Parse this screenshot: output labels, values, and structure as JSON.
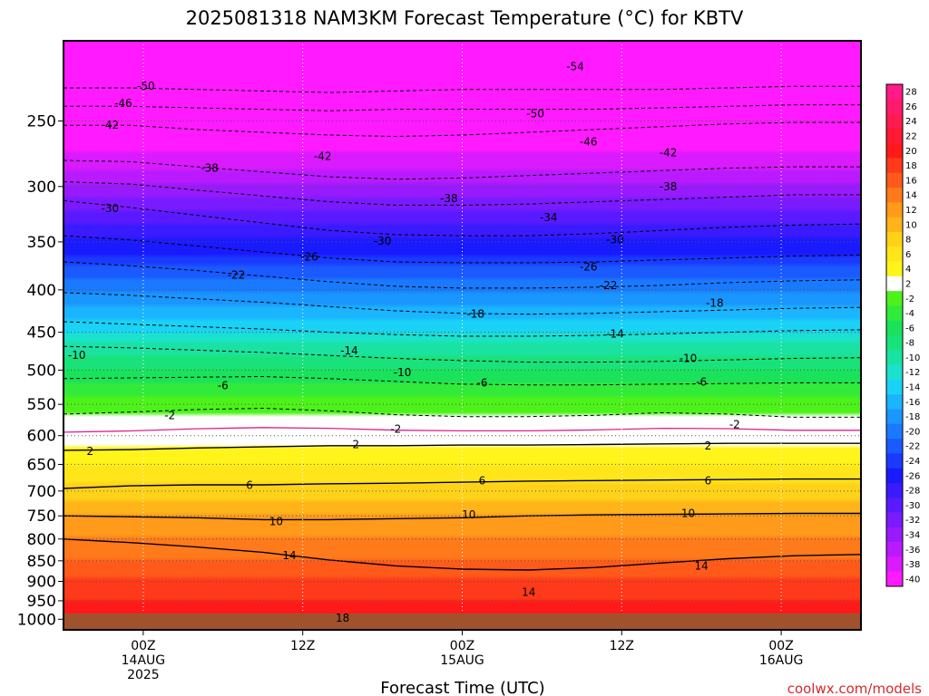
{
  "chart_data": {
    "type": "heatmap",
    "title": "2025081318 NAM3KM Forecast Temperature (°C) for KBTV",
    "xlabel": "Forecast Time (UTC)",
    "ylabel": "",
    "credit": "coolwx.com/models",
    "y_axis": {
      "scale": "log-pressure",
      "range": [
        1030,
        200
      ],
      "ticks": [
        250,
        300,
        350,
        400,
        450,
        500,
        550,
        600,
        650,
        700,
        750,
        800,
        850,
        900,
        950,
        1000
      ]
    },
    "x_axis": {
      "range_hours": [
        0,
        60
      ],
      "ticks": [
        {
          "hour": 6,
          "lines": [
            "00Z",
            "14AUG",
            "2025"
          ]
        },
        {
          "hour": 18,
          "lines": [
            "12Z"
          ]
        },
        {
          "hour": 30,
          "lines": [
            "00Z",
            "15AUG"
          ]
        },
        {
          "hour": 42,
          "lines": [
            "12Z"
          ]
        },
        {
          "hour": 54,
          "lines": [
            "00Z",
            "16AUG"
          ]
        }
      ]
    },
    "grid": true,
    "colorbar": {
      "position": "right",
      "labels": [
        "28",
        "26",
        "24",
        "22",
        "20",
        "18",
        "16",
        "14",
        "12",
        "10",
        "8",
        "6",
        "4",
        "2",
        "-2",
        "-4",
        "-6",
        "-8",
        "-10",
        "-12",
        "-14",
        "-16",
        "-18",
        "-20",
        "-22",
        "-24",
        "-26",
        "-28",
        "-30",
        "-32",
        "-34",
        "-36",
        "-38",
        "-40"
      ],
      "colors": [
        "#ff1a8c",
        "#ff1a6e",
        "#ff1a50",
        "#ff1a32",
        "#ff1a1a",
        "#ff3a1a",
        "#ff5a1a",
        "#ff7a1a",
        "#ff9a1a",
        "#ffb41a",
        "#ffd21a",
        "#ffe61a",
        "#fff51a",
        "#ffffff",
        "#4cf21a",
        "#32ea3a",
        "#1ae25a",
        "#1ae27a",
        "#1ae2a2",
        "#1ae2cc",
        "#1ad2f5",
        "#1ab4ff",
        "#1a96ff",
        "#1a7aff",
        "#1a5aff",
        "#1a3aff",
        "#1a1aff",
        "#3a1aff",
        "#5a1aff",
        "#7a1aff",
        "#9a1aff",
        "#ba1aff",
        "#da1aff",
        "#ff1aff"
      ]
    },
    "isotherms": [
      {
        "temp": -50,
        "pressures": [
          228,
          228,
          229,
          230,
          231,
          230,
          229,
          229,
          229,
          229,
          228,
          227,
          227
        ]
      },
      {
        "temp": -46,
        "pressures": [
          240,
          240,
          241,
          242,
          243,
          242,
          242,
          242,
          242,
          241,
          240,
          239,
          239
        ]
      },
      {
        "temp": -42,
        "pressures": [
          253,
          253,
          256,
          258,
          260,
          261,
          260,
          258,
          256,
          254,
          252,
          251,
          251
        ]
      },
      {
        "temp": -38,
        "pressures": [
          279,
          280,
          284,
          288,
          292,
          294,
          293,
          291,
          289,
          287,
          285,
          284,
          284
        ]
      },
      {
        "temp": -34,
        "pressures": [
          296,
          298,
          303,
          308,
          313,
          316,
          316,
          315,
          313,
          311,
          309,
          307,
          307
        ]
      },
      {
        "temp": -30,
        "pressures": [
          312,
          318,
          325,
          332,
          339,
          343,
          344,
          344,
          342,
          339,
          336,
          334,
          333
        ]
      },
      {
        "temp": -26,
        "pressures": [
          344,
          348,
          354,
          360,
          366,
          370,
          371,
          371,
          370,
          368,
          366,
          364,
          363
        ]
      },
      {
        "temp": -22,
        "pressures": [
          370,
          374,
          379,
          385,
          391,
          396,
          398,
          398,
          397,
          395,
          392,
          390,
          389
        ]
      },
      {
        "temp": -18,
        "pressures": [
          403,
          406,
          410,
          414,
          419,
          424,
          427,
          428,
          427,
          425,
          423,
          421,
          420
        ]
      },
      {
        "temp": -14,
        "pressures": [
          437,
          440,
          443,
          446,
          450,
          453,
          455,
          455,
          454,
          452,
          450,
          448,
          447
        ]
      },
      {
        "temp": -10,
        "pressures": [
          468,
          470,
          473,
          476,
          480,
          484,
          487,
          489,
          489,
          488,
          486,
          484,
          483
        ]
      },
      {
        "temp": -6,
        "pressures": [
          512,
          511,
          510,
          509,
          512,
          516,
          520,
          521,
          521,
          520,
          519,
          518,
          518
        ]
      },
      {
        "temp": -2,
        "pressures": [
          565,
          562,
          558,
          556,
          560,
          566,
          569,
          569,
          567,
          563,
          565,
          570,
          570
        ]
      },
      {
        "temp": 2,
        "pressures": [
          625,
          624,
          621,
          619,
          617,
          617,
          616,
          616,
          615,
          614,
          613,
          613,
          613
        ]
      },
      {
        "temp": 6,
        "pressures": [
          695,
          690,
          688,
          688,
          686,
          685,
          683,
          681,
          680,
          679,
          678,
          677,
          677
        ]
      },
      {
        "temp": 10,
        "pressures": [
          750,
          752,
          754,
          758,
          758,
          756,
          754,
          750,
          748,
          747,
          746,
          745,
          745
        ]
      },
      {
        "temp": 14,
        "pressures": [
          800,
          808,
          818,
          830,
          848,
          862,
          870,
          872,
          866,
          855,
          845,
          838,
          835
        ]
      }
    ],
    "contour_labels": [
      {
        "text": "-50",
        "hour": 6.2,
        "p": 227
      },
      {
        "text": "-54",
        "hour": 38.5,
        "p": 215
      },
      {
        "text": "-46",
        "hour": 4.5,
        "p": 238
      },
      {
        "text": "-50",
        "hour": 35.5,
        "p": 245
      },
      {
        "text": "-42",
        "hour": 3.5,
        "p": 253
      },
      {
        "text": "-46",
        "hour": 39.5,
        "p": 265
      },
      {
        "text": "-42",
        "hour": 19.5,
        "p": 276
      },
      {
        "text": "-42",
        "hour": 45.5,
        "p": 273
      },
      {
        "text": "-38",
        "hour": 11.0,
        "p": 285
      },
      {
        "text": "-38",
        "hour": 45.5,
        "p": 300
      },
      {
        "text": "-38",
        "hour": 29.0,
        "p": 310
      },
      {
        "text": "-30",
        "hour": 3.5,
        "p": 319
      },
      {
        "text": "-34",
        "hour": 36.5,
        "p": 327
      },
      {
        "text": "-30",
        "hour": 24.0,
        "p": 349
      },
      {
        "text": "-30",
        "hour": 41.5,
        "p": 348
      },
      {
        "text": "-26",
        "hour": 18.5,
        "p": 365
      },
      {
        "text": "-26",
        "hour": 39.5,
        "p": 375
      },
      {
        "text": "-22",
        "hour": 13.0,
        "p": 384
      },
      {
        "text": "-22",
        "hour": 41.0,
        "p": 395
      },
      {
        "text": "-18",
        "hour": 31.0,
        "p": 428
      },
      {
        "text": "-18",
        "hour": 49.0,
        "p": 415
      },
      {
        "text": "-14",
        "hour": 41.5,
        "p": 452
      },
      {
        "text": "-14",
        "hour": 21.5,
        "p": 474
      },
      {
        "text": "-10",
        "hour": 1.0,
        "p": 480
      },
      {
        "text": "-10",
        "hour": 47.0,
        "p": 484
      },
      {
        "text": "-10",
        "hour": 25.5,
        "p": 503
      },
      {
        "text": "-6",
        "hour": 12.0,
        "p": 522
      },
      {
        "text": "-6",
        "hour": 31.5,
        "p": 518
      },
      {
        "text": "-6",
        "hour": 48.0,
        "p": 517
      },
      {
        "text": "-2",
        "hour": 8.0,
        "p": 567
      },
      {
        "text": "-2",
        "hour": 25.0,
        "p": 589
      },
      {
        "text": "-2",
        "hour": 50.5,
        "p": 582
      },
      {
        "text": "2",
        "hour": 2.0,
        "p": 627
      },
      {
        "text": "2",
        "hour": 22.0,
        "p": 615
      },
      {
        "text": "2",
        "hour": 48.5,
        "p": 617
      },
      {
        "text": "6",
        "hour": 14.0,
        "p": 689
      },
      {
        "text": "6",
        "hour": 31.5,
        "p": 680
      },
      {
        "text": "6",
        "hour": 48.5,
        "p": 680
      },
      {
        "text": "10",
        "hour": 16.0,
        "p": 762
      },
      {
        "text": "10",
        "hour": 30.5,
        "p": 748
      },
      {
        "text": "10",
        "hour": 47.0,
        "p": 745
      },
      {
        "text": "14",
        "hour": 17.0,
        "p": 838
      },
      {
        "text": "14",
        "hour": 48.0,
        "p": 862
      },
      {
        "text": "14",
        "hour": 35.0,
        "p": 928
      },
      {
        "text": "18",
        "hour": 21.0,
        "p": 997
      }
    ]
  }
}
